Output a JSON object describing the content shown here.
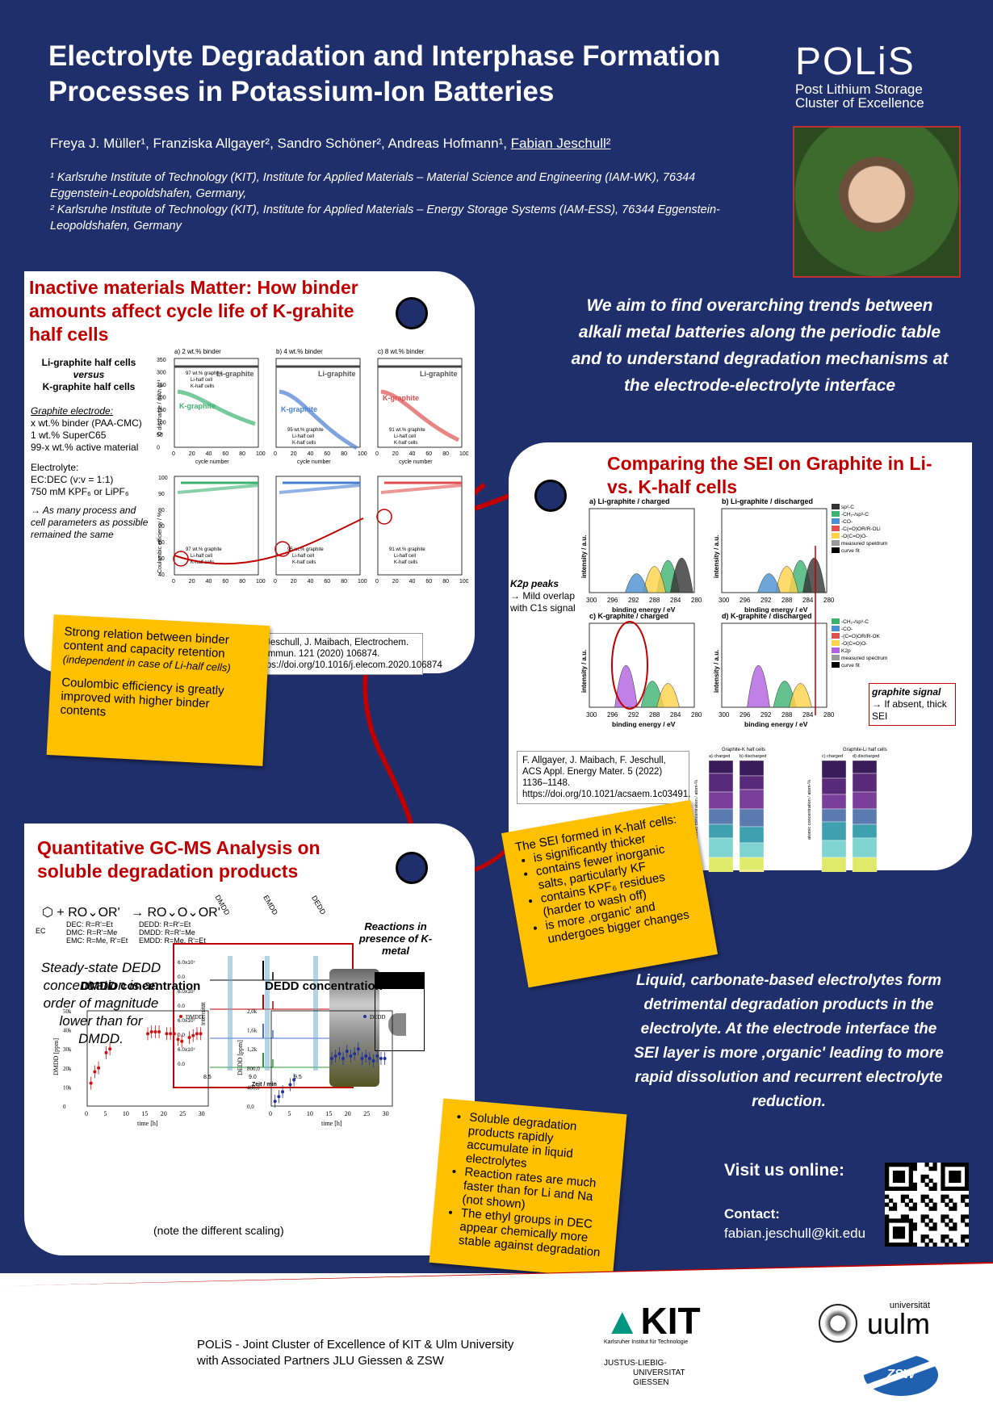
{
  "title": "Electrolyte Degradation and Interphase Formation Processes in Potassium-Ion Batteries",
  "logo": {
    "name": "POLiS",
    "line1": "Post Lithium Storage",
    "line2": "Cluster of Excellence"
  },
  "authors": {
    "plain": "Freya J. Müller¹, Franziska Allgayer², Sandro Schöner², Andreas Hofmann¹, ",
    "underlined": "Fabian Jeschull²"
  },
  "affiliations": [
    "¹ Karlsruhe Institute of Technology (KIT), Institute for Applied Materials – Material Science and Engineering (IAM-WK), 76344 Eggenstein-Leopoldshafen, Germany,",
    "² Karlsruhe Institute of Technology (KIT), Institute for Applied Materials – Energy Storage Systems (IAM-ESS), 76344 Eggenstein-Leopoldshafen, Germany"
  ],
  "panel1": {
    "title": "Inactive materials Matter: How binder amounts affect cycle life of K-grahite half cells",
    "compare1": "Li-graphite half cells",
    "versus": "versus",
    "compare2": "K-graphite half cells",
    "electrode_heading": "Graphite electrode:",
    "electrode_lines": [
      "x wt.% binder (PAA-CMC)",
      "1 wt.% SuperC65",
      "99-x wt.% active material"
    ],
    "electrolyte_heading": "Electrolyte:",
    "electrolyte_lines": [
      "EC:DEC (v:v = 1:1)",
      "750 mM KPF₆ or LiPF₆"
    ],
    "remark": "→ As many process and cell parameters as possible remained the same",
    "charts_top": [
      {
        "tag": "a) 2 wt.% binder",
        "li": "Li-graphite",
        "k": "K-graphite",
        "color": "#3cb371"
      },
      {
        "tag": "b) 4 wt.% binder",
        "li": "Li-graphite",
        "k": "K-graphite",
        "color": "#4a7fd0"
      },
      {
        "tag": "c) 8 wt.% binder",
        "li": "Li-graphite",
        "k": "K-graphite",
        "color": "#e05050"
      }
    ],
    "xlabel": "cycle number",
    "ylabel_top": "Q discharge / mAh g⁻¹",
    "ylabel_bottom": "Coulombic efficiency / %",
    "x_ticks": [
      "0",
      "20",
      "40",
      "60",
      "80",
      "100"
    ],
    "y_ticks_top": [
      "350",
      "300",
      "250",
      "200",
      "150",
      "100",
      "50",
      "0"
    ],
    "y_ticks_bottom": [
      "100",
      "90",
      "80",
      "70",
      "60",
      "50",
      "40"
    ],
    "legend_97": "97 wt.% graphite",
    "legend_95": "95 wt.% graphite",
    "legend_91": "91 wt.% graphite",
    "legend_li": "Li-half cell",
    "legend_k": "K-half cells",
    "reference": "F. Jeschull, J. Maibach, Electrochem. Commun. 121 (2020) 106874. https://doi.org/10.1016/j.elecom.2020.106874",
    "note1": "Strong relation between binder content and capacity retention",
    "note1b": "(independent in case of Li-half cells)",
    "note2": "Coulombic efficiency is greatly improved with higher binder contents"
  },
  "aim": "We aim to find overarching trends between alkali metal batteries along the periodic table and to understand degradation mechanisms at the electrode-electrolyte interface",
  "panel2": {
    "title": "Comparing the SEI on Graphite in Li- vs. K-half cells",
    "xps": [
      {
        "tag": "a) Li-graphite / charged"
      },
      {
        "tag": "b) Li-graphite / discharged"
      },
      {
        "tag": "c) K-graphite / charged"
      },
      {
        "tag": "d) K-graphite / discharged"
      }
    ],
    "xlabel": "binding energy / eV",
    "ylabel": "intensity / a.u.",
    "x_ticks": [
      "300",
      "296",
      "292",
      "288",
      "284",
      "280"
    ],
    "legend_top": [
      "sp²-C",
      "-CH₂-/sp³-C",
      "-CO-",
      "-C(=O)OR/R-OLi",
      "-O(C=O)O-",
      "measured spektrum",
      "curve fit"
    ],
    "legend_bottom": [
      "-CH₂-/sp³-C",
      "-CO-",
      "-(C=O)OR/R-OK",
      "-O(C=O)O-",
      "K2p",
      "measured spectrum",
      "curve fit"
    ],
    "k2p_title": "K2p peaks",
    "k2p_text": "→ Mild overlap with C1s signal",
    "graphite_signal_title": "graphite signal",
    "graphite_signal_text": "→ If absent, thick SEI",
    "reference": "F. Allgayer, J. Maibach, F. Jeschull, ACS Appl. Energy Mater. 5 (2022) 1136–1148. https://doi.org/10.1021/acsaem.1c03491.",
    "bar_title_k": "Graphite-K half cells",
    "bar_title_li": "Graphite-Li half cells",
    "bar_sub": [
      "a) charged",
      "b) discharged",
      "c) charged",
      "d) discharged"
    ],
    "bar_ylabel": "atomic concentration / atom-%",
    "note_title": "The SEI formed in K-half cells:",
    "note_items": [
      "is significantly thicker",
      "contains fewer inorganic salts, particularly KF",
      "contains KPF₆ residues (harder to wash off)",
      "is more ‚organic' and undergoes bigger changes"
    ]
  },
  "panel3": {
    "title": "Quantitative GC-MS Analysis on soluble degradation products",
    "scheme_left": [
      "DEC: R=R'=Et",
      "DMC: R=R'=Me",
      "EMC: R=Me, R'=Et"
    ],
    "scheme_right": [
      "DEDD: R=R'=Et",
      "DMDD: R=R'=Me",
      "EMDD: R=Me, R'=Et"
    ],
    "ec": "EC",
    "mol_labels": [
      "DMDD",
      "EMDD",
      "DEDD"
    ],
    "steady": "Steady-state DEDD concentration is an order of magnitude lower than for DMDD.",
    "reactions": "Reactions in presence of K-metal",
    "gc_xlabel": "Zeit / min",
    "gc_ylabel": "Intensität",
    "gc_x_ticks": [
      "8.5",
      "9.0",
      "9.5",
      "10.0"
    ],
    "gc_y_ticks": [
      "6.0x10⁷",
      "0.0",
      "6.0x10⁷",
      "0.0",
      "6.0x10⁷",
      "0.0",
      "6.0x10⁷",
      "0.0"
    ],
    "note_scaling": "(note the different scaling)"
  },
  "chart_data": [
    {
      "type": "scatter",
      "title": "DMDD concentration",
      "xlabel": "time [h]",
      "ylabel": "DMDD [ppm]",
      "legend": "DMDD",
      "ylim": [
        0,
        50000
      ],
      "xlim": [
        0,
        32
      ],
      "x_ticks": [
        "0",
        "5",
        "10",
        "15",
        "20",
        "25",
        "30"
      ],
      "y_ticks": [
        "0",
        "10k",
        "20k",
        "30k",
        "40k",
        "50k"
      ],
      "x": [
        1,
        2,
        3,
        5,
        6,
        16,
        17,
        18,
        19,
        21,
        22,
        23,
        24,
        25,
        27,
        28,
        29,
        30
      ],
      "y": [
        12000,
        18000,
        20000,
        28000,
        30000,
        38000,
        39000,
        39000,
        39000,
        38000,
        38000,
        38000,
        35000,
        34000,
        36000,
        37000,
        38000,
        38000
      ]
    },
    {
      "type": "scatter",
      "title": "DEDD concentration",
      "xlabel": "time [h]",
      "ylabel": "DEDD [ppm]",
      "legend": "DEDD",
      "ylim": [
        0,
        2000
      ],
      "xlim": [
        0,
        32
      ],
      "x_ticks": [
        "0",
        "5",
        "10",
        "15",
        "20",
        "25",
        "30"
      ],
      "y_ticks": [
        "0,0",
        "400,0",
        "800,0",
        "1,2k",
        "1,6k",
        "2,0k"
      ],
      "x": [
        1,
        2,
        3,
        5,
        6,
        16,
        17,
        18,
        19,
        20,
        21,
        22,
        23,
        24,
        25,
        26,
        27,
        28,
        29,
        30
      ],
      "y": [
        100,
        200,
        300,
        450,
        550,
        1000,
        1050,
        1100,
        1000,
        1150,
        1050,
        1100,
        1200,
        1000,
        1050,
        1000,
        950,
        1050,
        1000,
        1000
      ]
    }
  ],
  "note_gc": [
    "Soluble degradation products rapidly accumulate in liquid electrolytes",
    "Reaction rates are much faster than for Li and Na (not shown)",
    "The ethyl groups in DEC appear chemically more stable against degradation"
  ],
  "conclusion": "Liquid, carbonate-based electrolytes form detrimental degradation products in the electrolyte. At the electrode interface the SEI layer is more ‚organic' leading to more rapid dissolution and recurrent electrolyte reduction.",
  "visit": "Visit us online:",
  "contact_label": "Contact:",
  "contact_email": "fabian.jeschull@kit.edu",
  "footer": {
    "line1": "POLiS - Joint Cluster of Excellence of KIT & Ulm University",
    "line2": "with Associated Partners JLU Giessen & ZSW",
    "kit": "KIT",
    "kit_sub": "Karlsruher Institut für Technologie",
    "jlu": [
      "JUSTUS-LIEBIG-",
      "UNIVERSITAT",
      "GIESSEN"
    ],
    "ulm_small": "universität",
    "ulm": "uulm",
    "zsw": "ZSW"
  },
  "colors": {
    "background": "#1f2f6b",
    "accent_red": "#c00000",
    "note": "#ffc000"
  }
}
